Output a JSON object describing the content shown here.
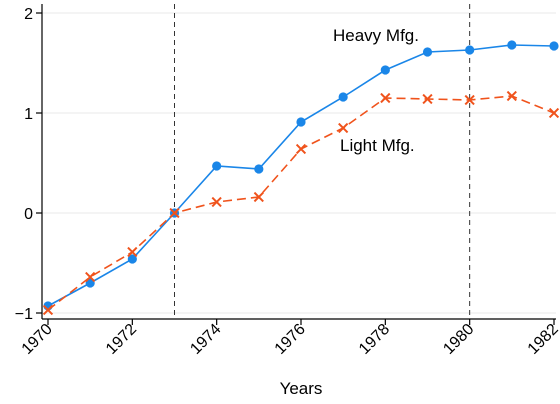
{
  "chart_data": {
    "type": "line",
    "title": "",
    "xlabel": "Years",
    "ylabel": "",
    "x": [
      1970,
      1971,
      1972,
      1973,
      1974,
      1975,
      1976,
      1977,
      1978,
      1979,
      1980,
      1981,
      1982
    ],
    "xlim": [
      1970,
      1982
    ],
    "ylim": [
      -1,
      2
    ],
    "x_ticks": [
      1970,
      1972,
      1974,
      1976,
      1978,
      1980,
      1982
    ],
    "y_ticks": [
      -1,
      0,
      1,
      2
    ],
    "y_tick_labels": [
      "−1",
      "0",
      "1",
      "2"
    ],
    "grid": "horizontal",
    "reference_lines_x": [
      1973,
      1980
    ],
    "series": [
      {
        "name": "Heavy Mfg.",
        "color": "#1a86e8",
        "marker": "circle",
        "line_style": "solid",
        "values": [
          -0.93,
          -0.7,
          -0.46,
          0.0,
          0.47,
          0.44,
          0.91,
          1.16,
          1.43,
          1.61,
          1.63,
          1.68,
          1.67
        ]
      },
      {
        "name": "Light Mfg.",
        "color": "#f0531c",
        "marker": "x",
        "line_style": "dashed",
        "values": [
          -0.97,
          -0.64,
          -0.39,
          0.0,
          0.11,
          0.16,
          0.64,
          0.85,
          1.15,
          1.14,
          1.13,
          1.17,
          1.0
        ]
      }
    ]
  }
}
